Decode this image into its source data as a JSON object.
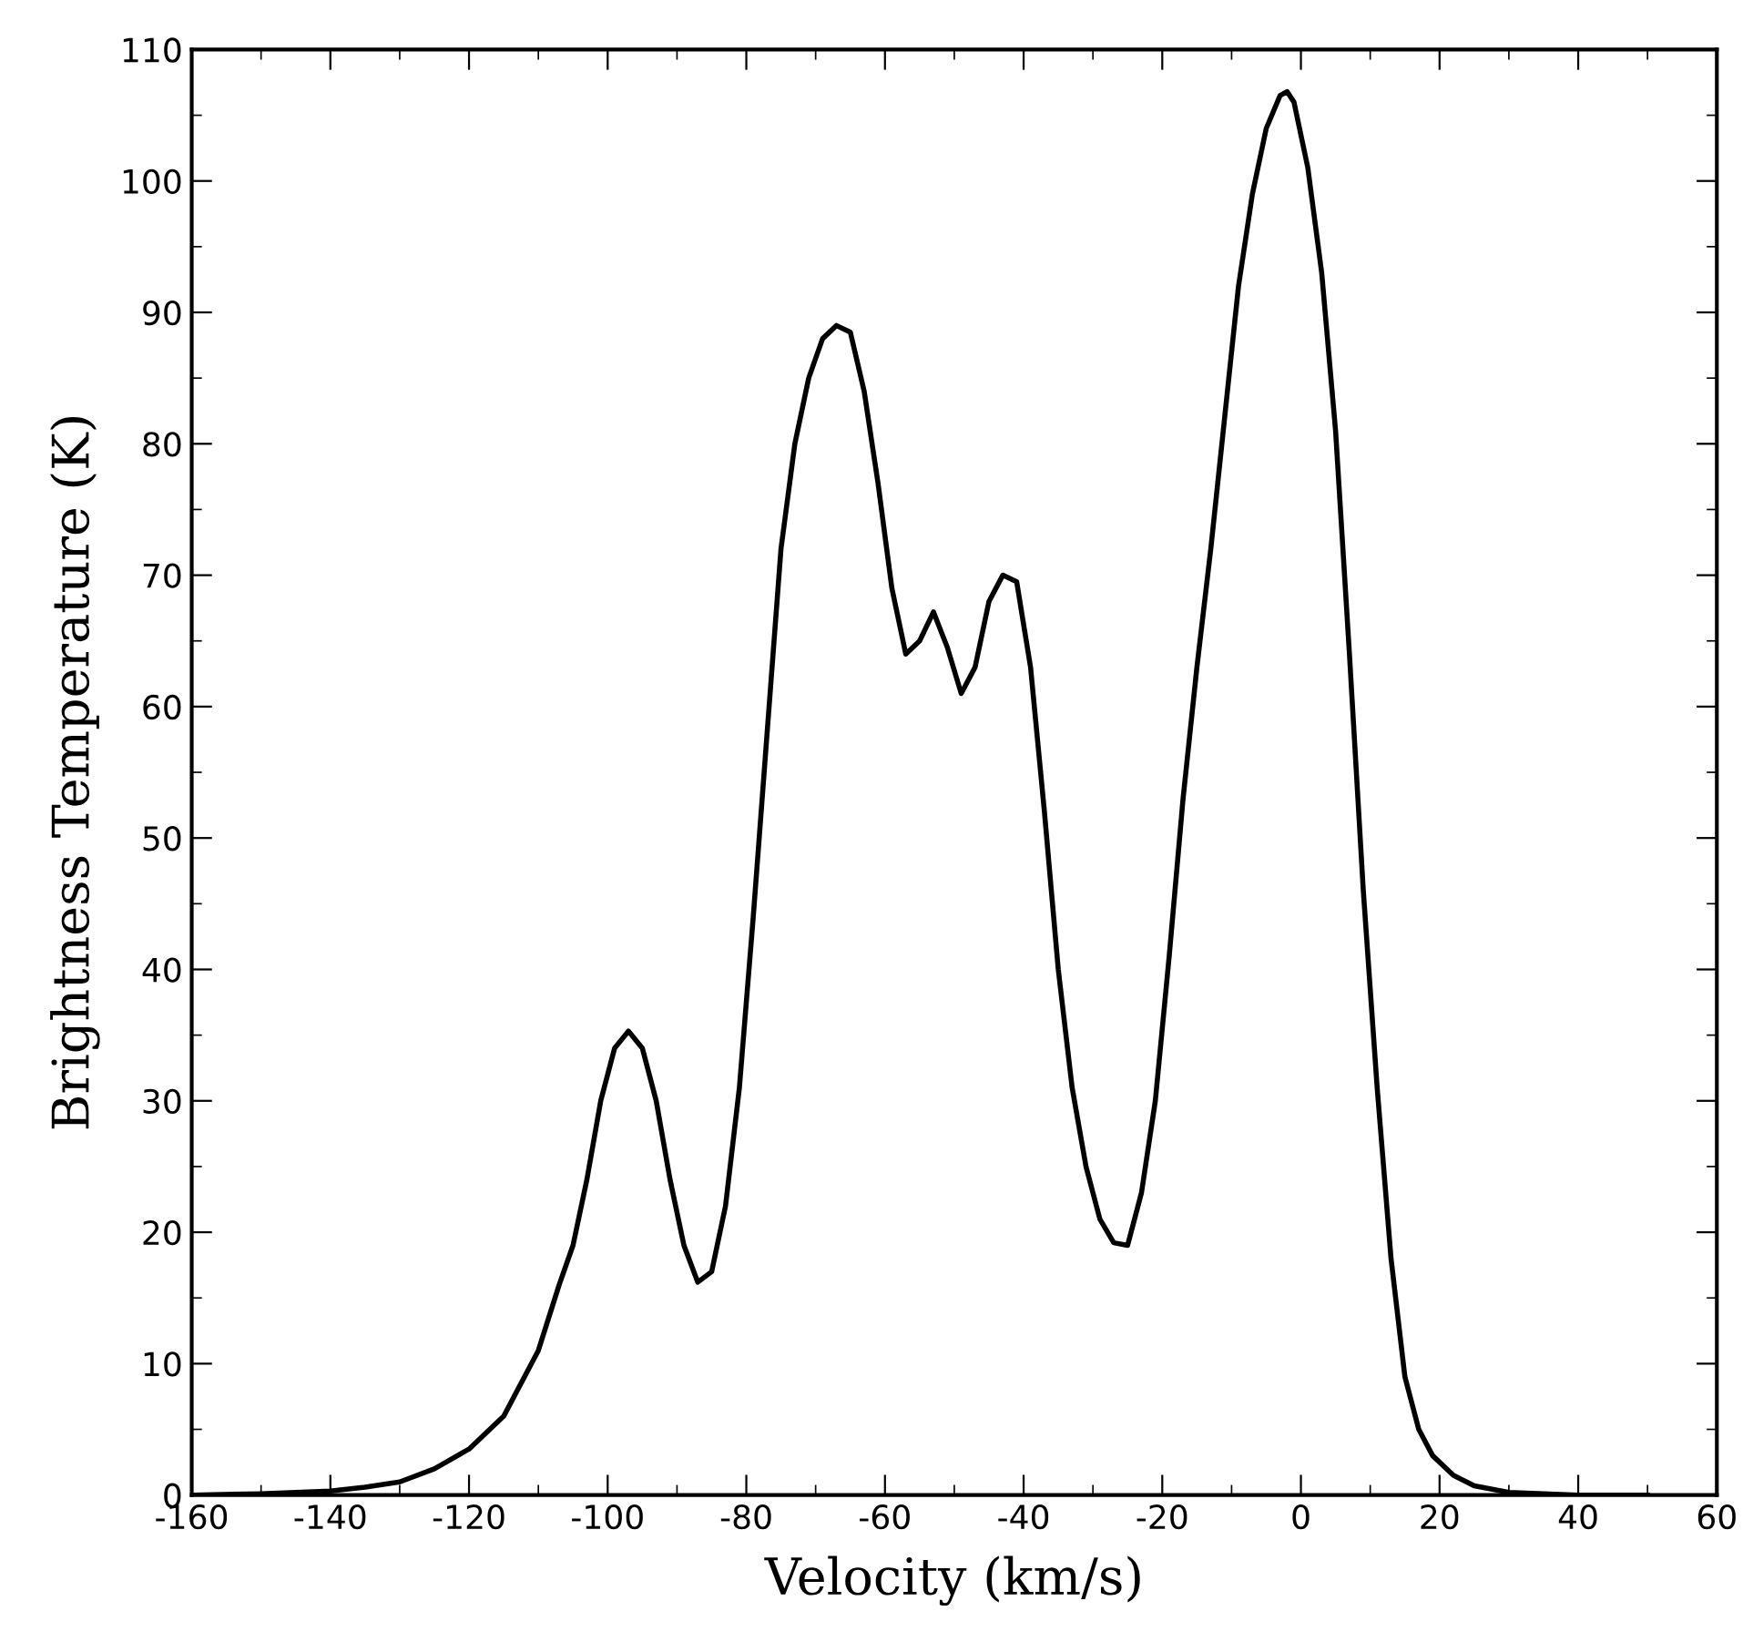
{
  "chart_data": {
    "type": "line",
    "xlabel": "Velocity (km/s)",
    "ylabel": "Brightness Temperature (K)",
    "xlim": [
      -160,
      60
    ],
    "xticks": [
      -160,
      -140,
      -120,
      -100,
      -80,
      -60,
      -40,
      -20,
      0,
      20,
      40,
      60
    ],
    "ylim": [
      0,
      110
    ],
    "yticks": [
      0,
      10,
      20,
      30,
      40,
      50,
      60,
      70,
      80,
      90,
      100,
      110
    ],
    "grid": false,
    "legend": false,
    "marker": "none",
    "line_style": "solid",
    "series": [
      {
        "color": "#000000",
        "x": [
          -160,
          -150,
          -140,
          -135,
          -130,
          -125,
          -120,
          -115,
          -110,
          -107,
          -105,
          -103,
          -101,
          -99,
          -97,
          -95,
          -93,
          -91,
          -89,
          -87,
          -85,
          -83,
          -81,
          -79,
          -77,
          -75,
          -73,
          -71,
          -69,
          -67,
          -65,
          -63,
          -61,
          -59,
          -57,
          -55,
          -53,
          -51,
          -49,
          -47,
          -45,
          -43,
          -41,
          -39,
          -37,
          -35,
          -33,
          -31,
          -29,
          -27,
          -25,
          -23,
          -21,
          -19,
          -17,
          -15,
          -13,
          -11,
          -9,
          -7,
          -5,
          -3,
          -2,
          -1,
          1,
          3,
          5,
          7,
          9,
          11,
          13,
          15,
          17,
          19,
          22,
          25,
          30,
          40,
          50
        ],
        "values": [
          0,
          0.1,
          0.3,
          0.6,
          1,
          2,
          3.5,
          6,
          11,
          16,
          19,
          24,
          30,
          34,
          35.3,
          34,
          30,
          24,
          19,
          16.2,
          17,
          22,
          31,
          44,
          58,
          72,
          80,
          85,
          88,
          89,
          88.5,
          84,
          77,
          69,
          64,
          65,
          67.2,
          64.5,
          61,
          63,
          68,
          70,
          69.5,
          63,
          52,
          40,
          31,
          25,
          21,
          19.2,
          19,
          23,
          30,
          41,
          53,
          63,
          72,
          82,
          92,
          99,
          104,
          106.5,
          106.8,
          106,
          101,
          93,
          81,
          64,
          46,
          31,
          18,
          9,
          5,
          3,
          1.5,
          0.7,
          0.2,
          0,
          0
        ]
      }
    ]
  }
}
